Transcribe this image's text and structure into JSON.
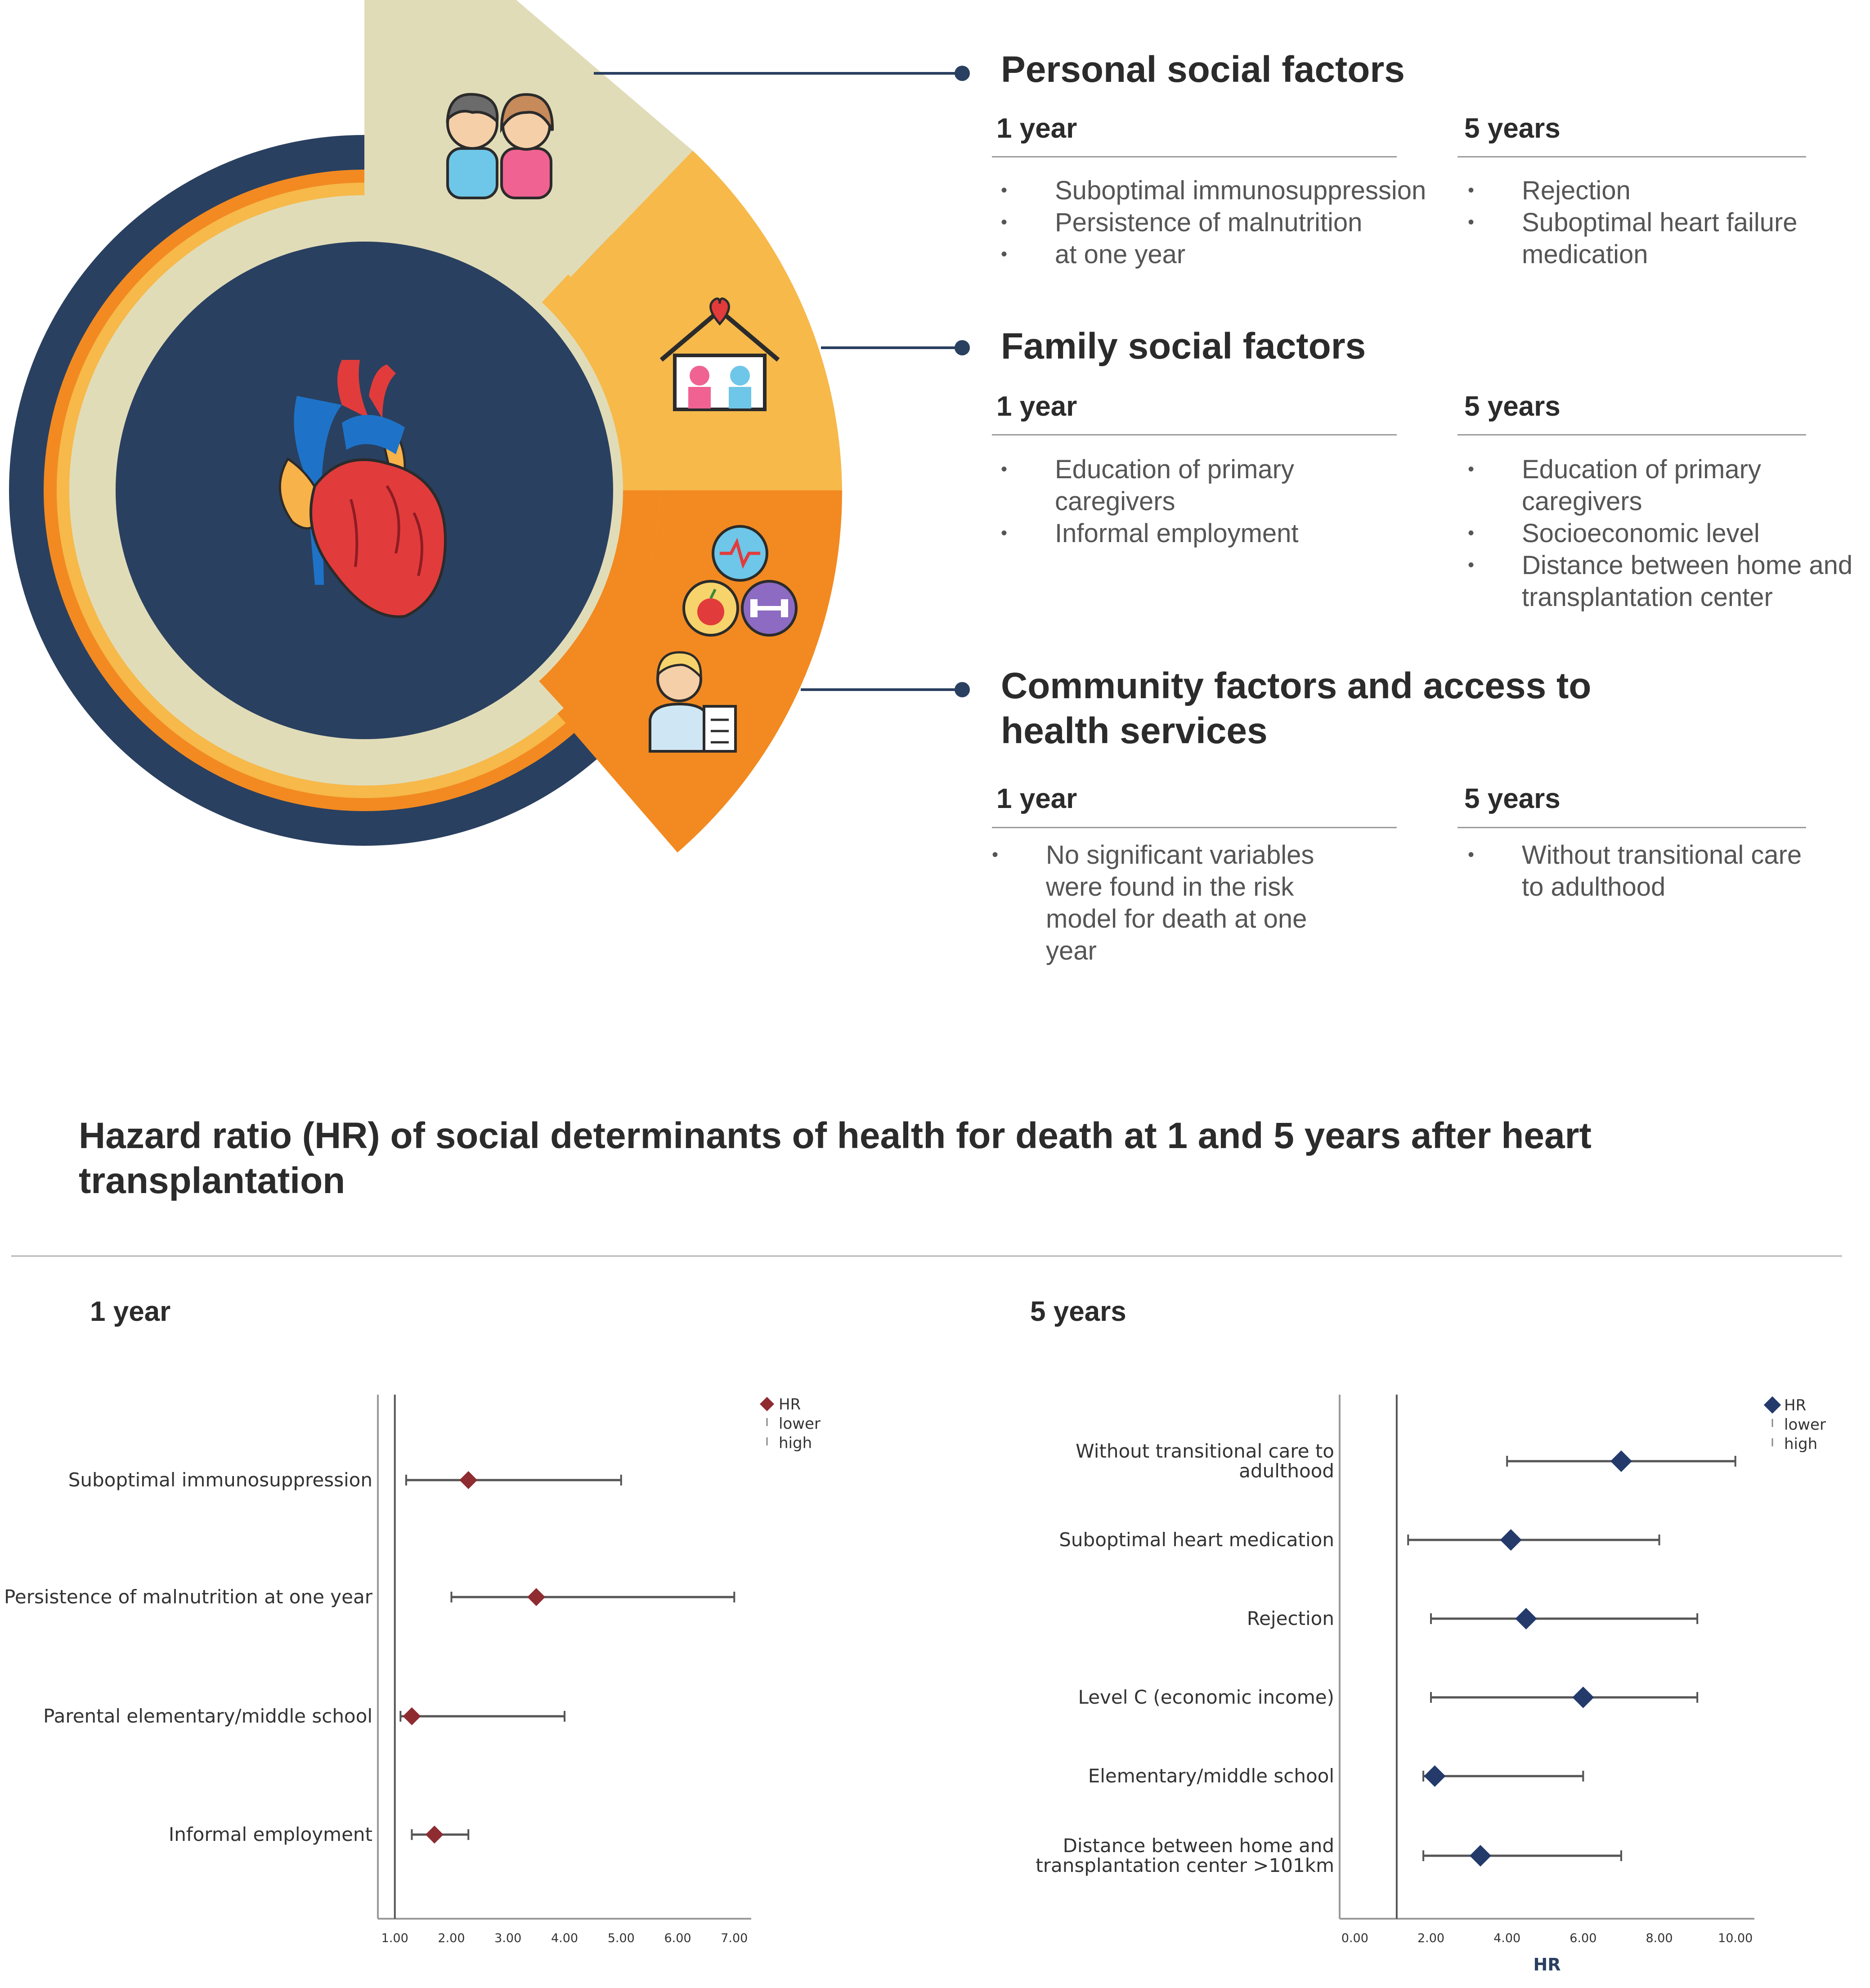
{
  "colors": {
    "navy": "#2a4060",
    "orange": "#f28a21",
    "amber": "#f6b94a",
    "cream": "#e1dcb8",
    "hr_1year": "#8e2c32",
    "hr_5years": "#233a6b"
  },
  "icons": [
    "people-icon",
    "family-home-icon",
    "heart-organ-icon",
    "heart-rate-icon",
    "apple-icon",
    "dumbbell-icon",
    "doctor-icon"
  ],
  "factors": [
    {
      "title": "Personal social factors",
      "col1_header": "1 year",
      "col1_items": [
        "Suboptimal immunosuppression",
        "Persistence of malnutrition",
        "at one year"
      ],
      "col2_header": "5 years",
      "col2_items": [
        "Rejection",
        "Suboptimal heart failure medication"
      ]
    },
    {
      "title": "Family social factors",
      "col1_header": "1 year",
      "col1_items": [
        "Education of primary caregivers",
        "Informal employment"
      ],
      "col2_header": "5 years",
      "col2_items": [
        "Education of primary caregivers",
        "Socioeconomic level",
        "Distance between home and transplantation center"
      ]
    },
    {
      "title": "Community factors and access to health services",
      "col1_header": "1 year",
      "col1_items": [
        "No significant variables were found in the risk model for death at one year"
      ],
      "col2_header": "5 years",
      "col2_items": [
        "Without transitional care to adulthood"
      ]
    }
  ],
  "chart_title": "Hazard ratio (HR) of social determinants of health for death at 1 and 5 years after heart transplantation",
  "chart_data": [
    {
      "type": "forest",
      "panel_title": "1 year",
      "categories": [
        "Suboptimal immunosuppression",
        "Persistence of malnutrition at one year",
        "Parental elementary/middle school",
        "Informal employment"
      ],
      "series": [
        {
          "name": "HR",
          "values": [
            2.3,
            3.5,
            1.3,
            1.7
          ]
        },
        {
          "name": "lower",
          "values": [
            1.2,
            2.0,
            1.1,
            1.3
          ]
        },
        {
          "name": "high",
          "values": [
            5.0,
            7.0,
            4.0,
            2.3
          ]
        }
      ],
      "reference_line": 1.0,
      "xlim": [
        0.7,
        7.3
      ],
      "xticks": [
        "1.00",
        "2.00",
        "3.00",
        "4.00",
        "5.00",
        "6.00",
        "7.00"
      ],
      "xlabel": "",
      "legend": [
        "HR",
        "lower",
        "high"
      ],
      "legend_position": "top-right",
      "color": "#8e2c32"
    },
    {
      "type": "forest",
      "panel_title": "5 years",
      "categories": [
        "Without transitional care to adulthood",
        "Suboptimal heart medication",
        "Rejection",
        "Level C (economic income)",
        "Elementary/middle school",
        "Distance between home and transplantation center >101km"
      ],
      "series": [
        {
          "name": "HR",
          "values": [
            7.0,
            4.1,
            4.5,
            6.0,
            2.1,
            3.3
          ]
        },
        {
          "name": "lower",
          "values": [
            4.0,
            1.4,
            2.0,
            2.0,
            1.8,
            1.8
          ]
        },
        {
          "name": "high",
          "values": [
            10.0,
            8.0,
            9.0,
            9.0,
            6.0,
            7.0
          ]
        }
      ],
      "reference_line": 1.1,
      "xlim": [
        -0.4,
        10.5
      ],
      "xticks": [
        "0.00",
        "2.00",
        "4.00",
        "6.00",
        "8.00",
        "10.00"
      ],
      "xlabel": "HR",
      "legend": [
        "HR",
        "lower",
        "high"
      ],
      "legend_position": "top-right",
      "color": "#233a6b"
    }
  ]
}
